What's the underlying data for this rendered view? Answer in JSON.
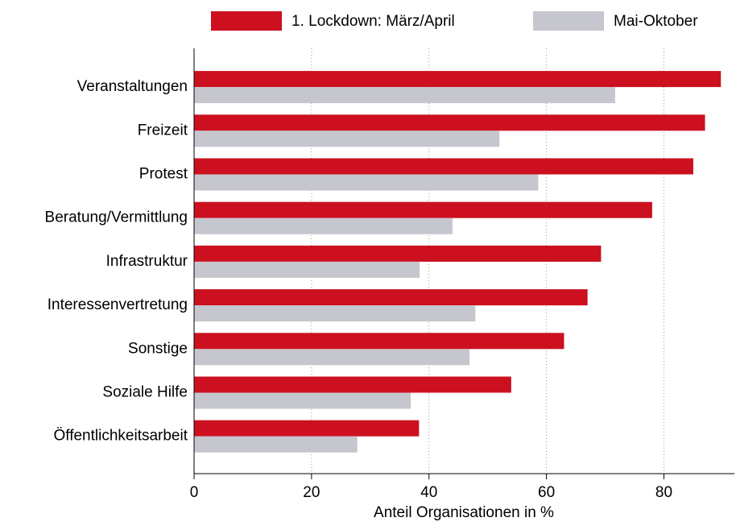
{
  "chart_data": {
    "type": "hbar",
    "categories": [
      "Veranstaltungen",
      "Freizeit",
      "Protest",
      "Beratung/Vermittlung",
      "Infrastruktur",
      "Interessenvertretung",
      "Sonstige",
      "Soziale Hilfe",
      "Öffentlichkeitsarbeit"
    ],
    "series": [
      {
        "name": "1. Lockdown: März/April",
        "color": "#cc1020",
        "values": [
          89.7,
          87,
          85,
          78,
          69.3,
          67,
          63,
          54,
          38.3
        ]
      },
      {
        "name": "Mai-Oktober",
        "color": "#c6c6ce",
        "values": [
          71.7,
          52,
          58.6,
          44,
          38.4,
          47.9,
          46.9,
          36.9,
          27.8
        ]
      }
    ],
    "xlabel": "Anteil Organisationen in %",
    "xlim": [
      0,
      92
    ],
    "xticks": [
      0,
      20,
      40,
      60,
      80
    ],
    "grid": true,
    "legend": "top"
  }
}
